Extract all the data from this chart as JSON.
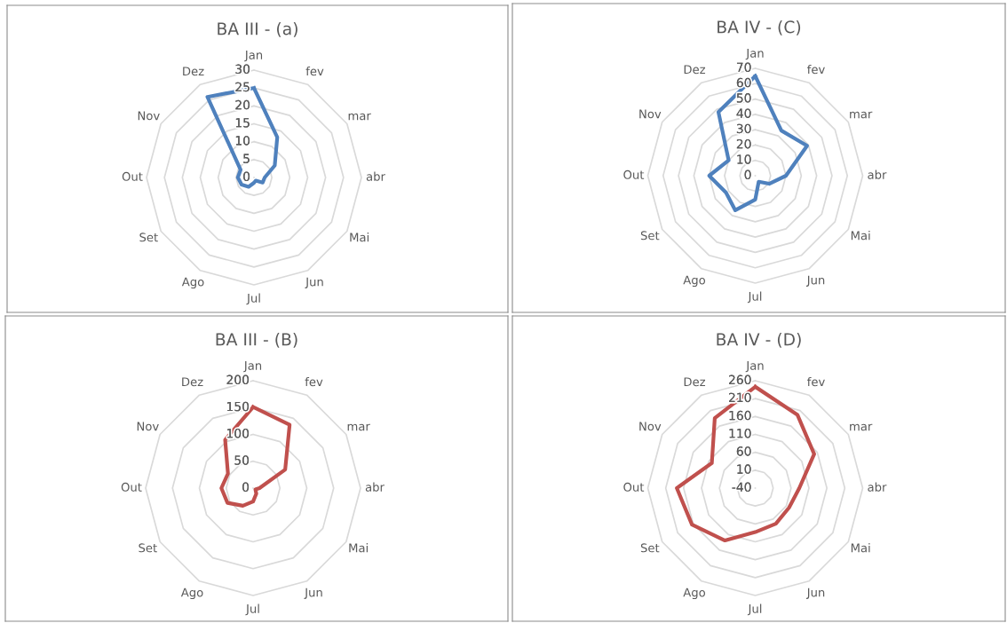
{
  "chart_data": [
    {
      "type": "radar",
      "title": "BA III - (a)",
      "categories": [
        "Jan",
        "fev",
        "mar",
        "abr",
        "Mai",
        "Jun",
        "Jul",
        "Ago",
        "Set",
        "Out",
        "Nov",
        "Dez"
      ],
      "ylim": [
        0,
        30
      ],
      "yticks": [
        0,
        5,
        10,
        15,
        20,
        25,
        30
      ],
      "grid": true,
      "series": [
        {
          "color": "#4f81bd",
          "values": [
            25,
            13,
            6.7,
            3,
            2.8,
            1,
            1.5,
            3,
            4,
            4.5,
            4.3,
            26
          ]
        }
      ]
    },
    {
      "type": "radar",
      "title": "BA IV - (C)",
      "categories": [
        "Jan",
        "fev",
        "mar",
        "abr",
        "Mai",
        "Jun",
        "Jul",
        "Ago",
        "Set",
        "Out",
        "Nov",
        "Dez"
      ],
      "ylim": [
        0,
        70
      ],
      "yticks": [
        0,
        10,
        20,
        30,
        40,
        50,
        60,
        70
      ],
      "grid": true,
      "series": [
        {
          "color": "#4f81bd",
          "values": [
            65,
            34,
            39,
            20,
            10.5,
            4.5,
            15.5,
            26,
            22,
            30,
            20,
            48
          ]
        }
      ]
    },
    {
      "type": "radar",
      "title": "BA III - (B)",
      "categories": [
        "Jan",
        "fev",
        "mar",
        "abr",
        "Mai",
        "Jun",
        "Jul",
        "Ago",
        "Set",
        "Out",
        "Nov",
        "Dez"
      ],
      "ylim": [
        0,
        200
      ],
      "yticks": [
        0,
        50,
        100,
        150,
        200
      ],
      "grid": true,
      "series": [
        {
          "color": "#c0504d",
          "values": [
            151,
            136,
            69,
            12,
            5,
            12,
            25,
            38,
            55,
            59,
            54,
            104
          ]
        }
      ]
    },
    {
      "type": "radar",
      "title": "BA IV - (D)",
      "categories": [
        "Jan",
        "fev",
        "mar",
        "abr",
        "Mai",
        "Jun",
        "Jul",
        "Ago",
        "Set",
        "Out",
        "Nov",
        "Dez"
      ],
      "ylim": [
        -40,
        260
      ],
      "yticks": [
        -40,
        10,
        60,
        110,
        160,
        210,
        260
      ],
      "grid": true,
      "series": [
        {
          "color": "#c0504d",
          "values": [
            243,
            196,
            150,
            83,
            69,
            75,
            83,
            129,
            164,
            179,
            100,
            186
          ]
        }
      ]
    }
  ]
}
